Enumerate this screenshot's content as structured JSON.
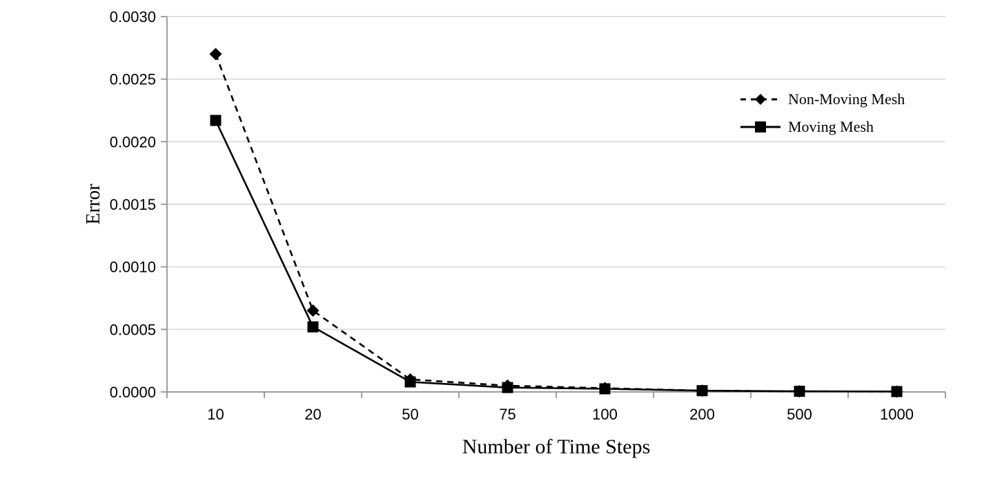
{
  "chart_data": {
    "type": "line",
    "title": "",
    "xlabel": "Number of Time Steps",
    "ylabel": "Error",
    "categories": [
      "10",
      "20",
      "50",
      "75",
      "100",
      "200",
      "500",
      "1000"
    ],
    "series": [
      {
        "name": "Non-Moving Mesh",
        "line_style": "dashed",
        "marker": "diamond",
        "color": "#000000",
        "values": [
          0.0027,
          0.00065,
          0.0001,
          5e-05,
          3e-05,
          1e-05,
          5e-06,
          3e-06
        ]
      },
      {
        "name": "Moving Mesh",
        "line_style": "solid",
        "marker": "square",
        "color": "#000000",
        "values": [
          0.00217,
          0.00052,
          8e-05,
          3.5e-05,
          2.5e-05,
          1e-05,
          5e-06,
          3e-06
        ]
      }
    ],
    "ylim": [
      0,
      0.003
    ],
    "yticks": [
      0,
      0.0005,
      0.001,
      0.0015,
      0.002,
      0.0025,
      0.003
    ],
    "ytick_labels": [
      "0.0000",
      "0.0005",
      "0.0010",
      "0.0015",
      "0.0020",
      "0.0025",
      "0.0030"
    ],
    "grid": "horizontal",
    "legend_position": "inside-right",
    "colors": {
      "background": "#ffffff",
      "gridline": "#d9d9d9",
      "axis": "#8e8e8e",
      "text": "#000000"
    }
  }
}
